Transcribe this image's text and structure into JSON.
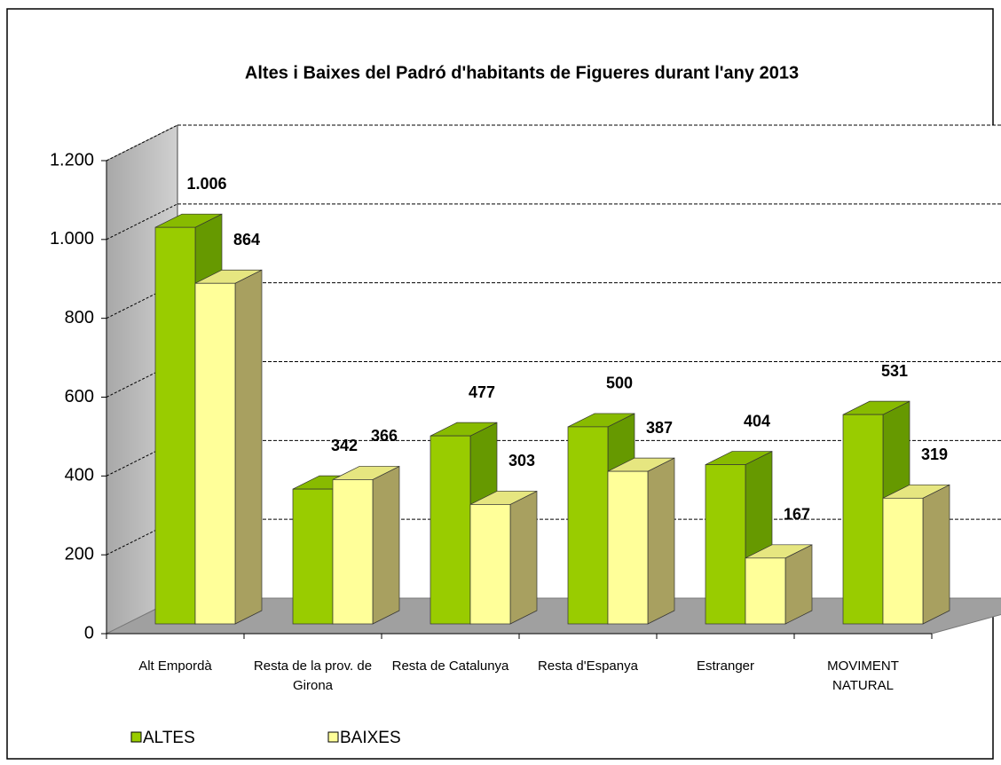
{
  "chart_data": {
    "type": "bar3d",
    "title": "Altes i Baixes del Padró d'habitants de Figueres durant l'any 2013",
    "categories": [
      "Alt Empordà",
      "Resta de la prov. de Girona",
      "Resta de Catalunya",
      "Resta d'Espanya",
      "Estranger",
      "MOVIMENT NATURAL"
    ],
    "series": [
      {
        "name": "ALTES",
        "color": "#99cc00",
        "values": [
          1006,
          342,
          477,
          500,
          404,
          531
        ],
        "value_labels": [
          "1.006",
          "342",
          "477",
          "500",
          "404",
          "531"
        ]
      },
      {
        "name": "BAIXES",
        "color": "#ffff99",
        "values": [
          864,
          366,
          303,
          387,
          167,
          319
        ]
      }
    ],
    "ylim": [
      0,
      1200
    ],
    "yticks": [
      0,
      200,
      400,
      600,
      800,
      {
        "value": 1000,
        "label": "1.000"
      },
      {
        "value": 1200,
        "label": "1.200"
      }
    ],
    "grid": true
  }
}
